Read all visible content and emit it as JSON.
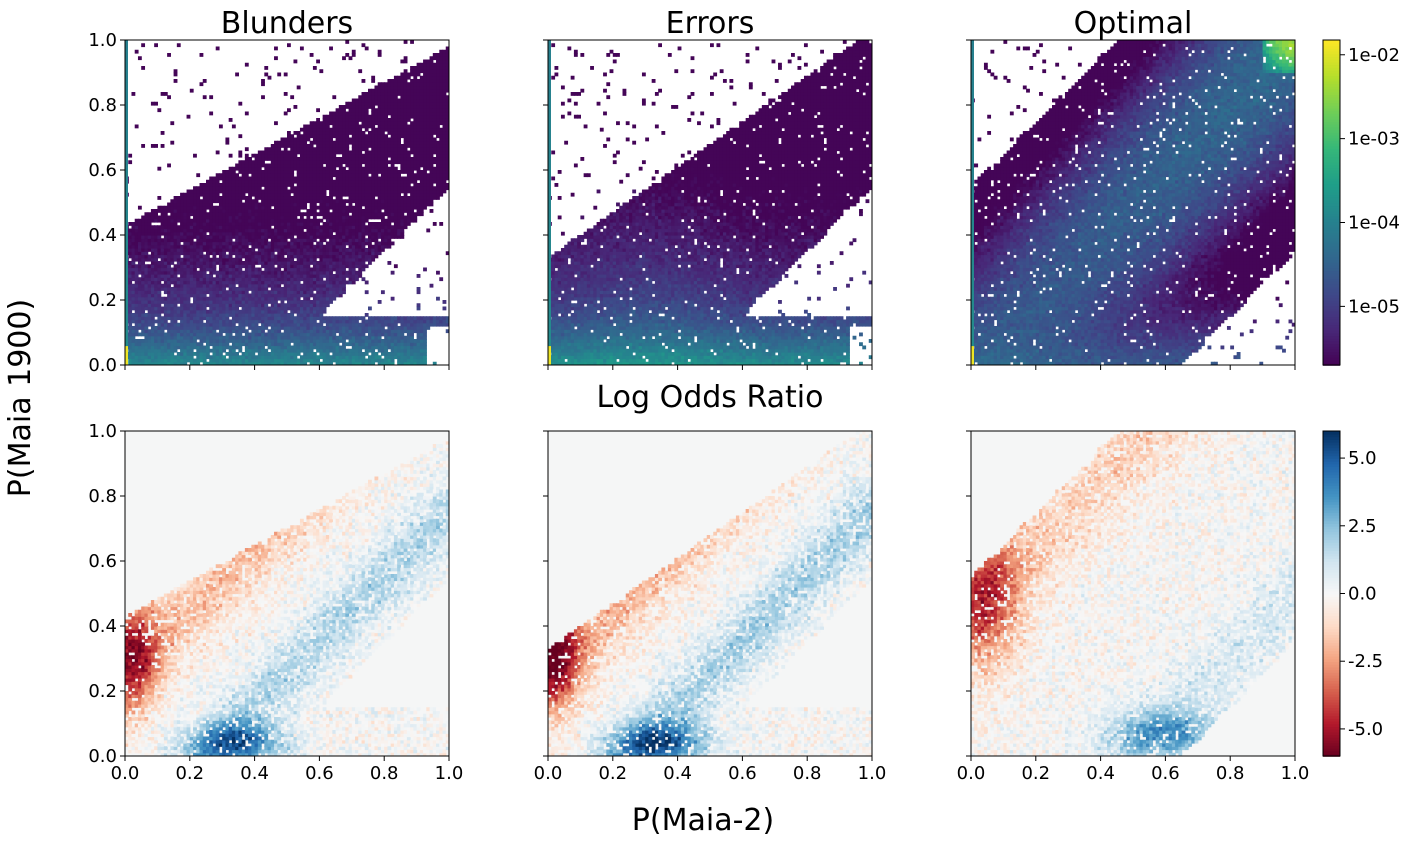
{
  "figure": {
    "y_label": "P(Maia 1900)",
    "x_label": "P(Maia-2)",
    "row_title_bottom": "Log Odds Ratio"
  },
  "chart_data": [
    {
      "type": "heatmap",
      "title": "Blunders",
      "row": "density",
      "xlim": [
        0,
        1
      ],
      "ylim": [
        0,
        1
      ],
      "x_ticks": [
        "0.0",
        "0.2",
        "0.4",
        "0.6",
        "0.8",
        "1.0"
      ],
      "y_ticks": [
        "0.0",
        "0.2",
        "0.4",
        "0.6",
        "0.8",
        "1.0"
      ],
      "show_x_ticklabels": false,
      "show_y_ticklabels": true,
      "pattern": "blunders_density",
      "description_values": "log-density concentrated near y=0 and x=0; sparse elsewhere"
    },
    {
      "type": "heatmap",
      "title": "Errors",
      "row": "density",
      "xlim": [
        0,
        1
      ],
      "ylim": [
        0,
        1
      ],
      "x_ticks": [
        "0.0",
        "0.2",
        "0.4",
        "0.6",
        "0.8",
        "1.0"
      ],
      "y_ticks": [
        "0.0",
        "0.2",
        "0.4",
        "0.6",
        "0.8",
        "1.0"
      ],
      "show_x_ticklabels": false,
      "show_y_ticklabels": false,
      "pattern": "errors_density"
    },
    {
      "type": "heatmap",
      "title": "Optimal",
      "row": "density",
      "xlim": [
        0,
        1
      ],
      "ylim": [
        0,
        1
      ],
      "x_ticks": [
        "0.0",
        "0.2",
        "0.4",
        "0.6",
        "0.8",
        "1.0"
      ],
      "y_ticks": [
        "0.0",
        "0.2",
        "0.4",
        "0.6",
        "0.8",
        "1.0"
      ],
      "show_x_ticklabels": false,
      "show_y_ticklabels": false,
      "pattern": "optimal_density"
    },
    {
      "type": "heatmap",
      "title": "",
      "row": "log_odds",
      "xlim": [
        0,
        1
      ],
      "ylim": [
        0,
        1
      ],
      "x_ticks": [
        "0.0",
        "0.2",
        "0.4",
        "0.6",
        "0.8",
        "1.0"
      ],
      "y_ticks": [
        "0.0",
        "0.2",
        "0.4",
        "0.6",
        "0.8",
        "1.0"
      ],
      "show_x_ticklabels": true,
      "show_y_ticklabels": true,
      "pattern": "blunders_lor"
    },
    {
      "type": "heatmap",
      "title": "",
      "row": "log_odds",
      "xlim": [
        0,
        1
      ],
      "ylim": [
        0,
        1
      ],
      "x_ticks": [
        "0.0",
        "0.2",
        "0.4",
        "0.6",
        "0.8",
        "1.0"
      ],
      "y_ticks": [
        "0.0",
        "0.2",
        "0.4",
        "0.6",
        "0.8",
        "1.0"
      ],
      "show_x_ticklabels": true,
      "show_y_ticklabels": false,
      "pattern": "errors_lor"
    },
    {
      "type": "heatmap",
      "title": "",
      "row": "log_odds",
      "xlim": [
        0,
        1
      ],
      "ylim": [
        0,
        1
      ],
      "x_ticks": [
        "0.0",
        "0.2",
        "0.4",
        "0.6",
        "0.8",
        "1.0"
      ],
      "y_ticks": [
        "0.0",
        "0.2",
        "0.4",
        "0.6",
        "0.8",
        "1.0"
      ],
      "show_x_ticklabels": true,
      "show_y_ticklabels": false,
      "pattern": "optimal_lor"
    }
  ],
  "colorbars": {
    "density": {
      "colormap": "viridis",
      "scale": "log",
      "range": [
        2e-06,
        0.015
      ],
      "ticks": [
        {
          "value": 1e-05,
          "label": "1e-05"
        },
        {
          "value": 0.0001,
          "label": "1e-04"
        },
        {
          "value": 0.001,
          "label": "1e-03"
        },
        {
          "value": 0.01,
          "label": "1e-02"
        }
      ]
    },
    "log_odds": {
      "colormap": "RdBu",
      "scale": "linear",
      "range": [
        -6,
        6
      ],
      "ticks": [
        {
          "value": 5.0,
          "label": "5.0"
        },
        {
          "value": 2.5,
          "label": "2.5"
        },
        {
          "value": 0.0,
          "label": "0.0"
        },
        {
          "value": -2.5,
          "label": "-2.5"
        },
        {
          "value": -5.0,
          "label": "-5.0"
        }
      ]
    }
  },
  "colors": {
    "viridis": [
      "#440154",
      "#482878",
      "#3e4989",
      "#31688e",
      "#26828e",
      "#1f9e89",
      "#35b779",
      "#6ece58",
      "#b5de2b",
      "#fde725"
    ],
    "rdbu": [
      "#67001f",
      "#b2182b",
      "#d6604d",
      "#f4a582",
      "#fddbc7",
      "#f7f7f7",
      "#d1e5f0",
      "#92c5de",
      "#4393c3",
      "#2166ac",
      "#053061"
    ],
    "empty_cell": "#f5f6f6"
  }
}
